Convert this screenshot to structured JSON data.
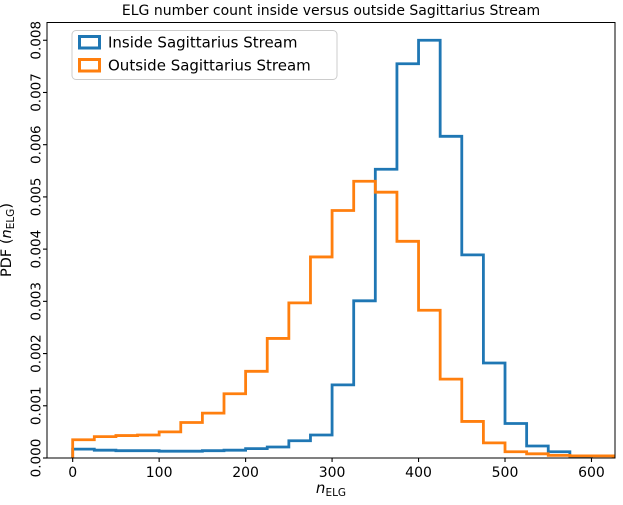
{
  "chart_data": {
    "type": "bar",
    "subtype": "step-histogram",
    "title": "ELG number count inside versus outside Sagittarius Stream",
    "xlabel": {
      "symbol": "n",
      "subscript": "ELG"
    },
    "ylabel": {
      "prefix": "PDF (",
      "symbol": "n",
      "subscript": "ELG",
      "suffix": ")"
    },
    "bin_width": 25,
    "series": [
      {
        "name": "Inside Sagittarius Stream",
        "color": "#1f77b4",
        "bin_edges": [
          0,
          25,
          50,
          75,
          100,
          125,
          150,
          175,
          200,
          225,
          250,
          275,
          300,
          325,
          350,
          375,
          400,
          425,
          450,
          475,
          500,
          525,
          550,
          575,
          600
        ],
        "values": [
          0.00017,
          0.00015,
          0.00014,
          0.00014,
          0.00013,
          0.00013,
          0.00014,
          0.00015,
          0.00018,
          0.00021,
          0.00033,
          0.00044,
          0.0014,
          0.00301,
          0.00553,
          0.00755,
          0.008,
          0.00616,
          0.00389,
          0.00182,
          0.00066,
          0.00023,
          0.00012,
          3e-05
        ]
      },
      {
        "name": "Outside Sagittarius Stream",
        "color": "#ff7f0e",
        "bin_edges": [
          0,
          25,
          50,
          75,
          100,
          125,
          150,
          175,
          200,
          225,
          250,
          275,
          300,
          325,
          350,
          375,
          400,
          425,
          450,
          475,
          500,
          525,
          550,
          575,
          600,
          625
        ],
        "values": [
          0.00035,
          0.00041,
          0.00043,
          0.00044,
          0.0005,
          0.00068,
          0.00086,
          0.00123,
          0.00166,
          0.00229,
          0.00297,
          0.00385,
          0.00474,
          0.0053,
          0.00509,
          0.00415,
          0.00283,
          0.00151,
          0.0007,
          0.00029,
          0.00012,
          8e-05,
          5e-05,
          4e-05,
          4e-05
        ]
      }
    ],
    "xticks": {
      "values": [
        0,
        100,
        200,
        300,
        400,
        500,
        600
      ],
      "labels": [
        "0",
        "100",
        "200",
        "300",
        "400",
        "500",
        "600"
      ]
    },
    "yticks": {
      "values": [
        0,
        0.001,
        0.002,
        0.003,
        0.004,
        0.005,
        0.006,
        0.007,
        0.008
      ],
      "labels": [
        "0.000",
        "0.001",
        "0.002",
        "0.003",
        "0.004",
        "0.005",
        "0.006",
        "0.007",
        "0.008"
      ]
    },
    "xlim": [
      -29.7,
      627.2
    ],
    "ylim": [
      0,
      0.00834
    ],
    "grid": false,
    "ytick_rotation": 90,
    "line_width": 2.8,
    "legend": {
      "position": "upper-left",
      "frame": true,
      "frame_color": "#cccccc"
    }
  }
}
